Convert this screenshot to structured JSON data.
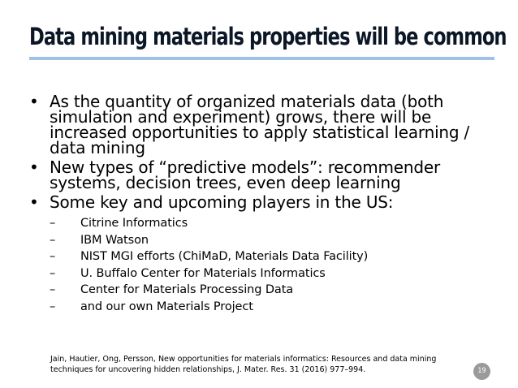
{
  "slide": {
    "title": "Data mining materials properties will be common",
    "bullets": [
      {
        "text": "As the quantity of organized materials data (both simulation and experiment) grows, there will be increased opportunities to apply statistical learning / data mining",
        "sub": []
      },
      {
        "text": "New types of “predictive models”: recommender systems, decision trees, even deep learning",
        "sub": []
      },
      {
        "text": "Some key and upcoming players in the US:",
        "sub": [
          "Citrine Informatics",
          "IBM Watson",
          "NIST MGI efforts (ChiMaD, Materials Data Facility)",
          "U. Buffalo Center for Materials Informatics",
          "Center for Materials Processing Data",
          "and our own Materials Project"
        ]
      }
    ],
    "bullet_symbol": "•",
    "dash_symbol": "–",
    "citation": "Jain, Hautier, Ong, Persson, New opportunities for materials informatics: Resources and data mining techniques for uncovering hidden relationships, J. Mater. Res. 31 (2016) 977–994.",
    "page_number": "19",
    "colors": {
      "title_rule": "#9ec1e5",
      "page_badge": "#9a9a9a"
    }
  }
}
